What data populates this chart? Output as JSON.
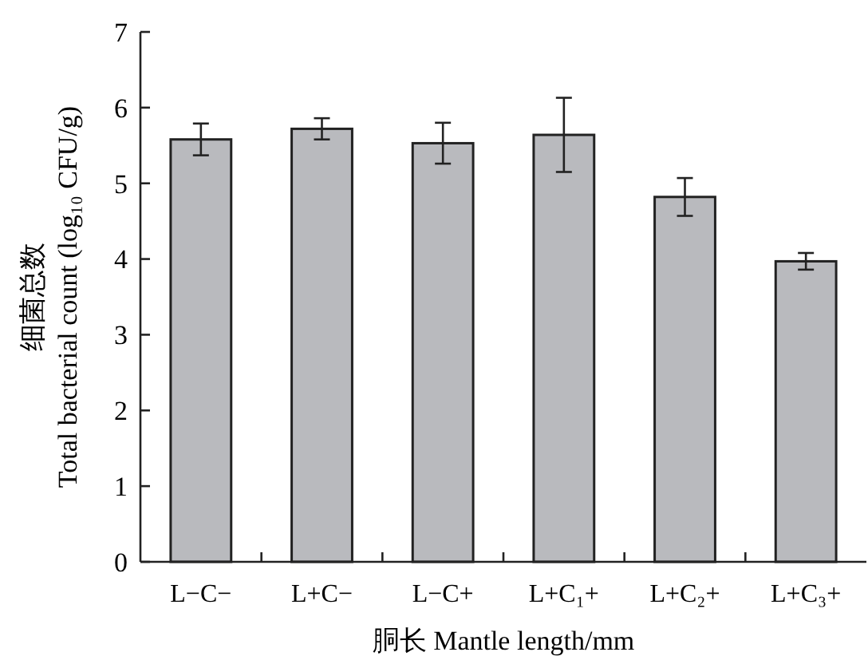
{
  "chart_data": {
    "type": "bar",
    "xlabel": "胴长 Mantle length/mm",
    "ylabel": "细菌总数\nTotal bacterial count (log₁₀ CFU/g)",
    "categories": [
      "L−C−",
      "L+C−",
      "L−C+",
      "L+C₁+",
      "L+C₂+",
      "L+C₃+"
    ],
    "values": [
      5.58,
      5.72,
      5.53,
      5.64,
      4.82,
      3.97
    ],
    "errors": [
      0.21,
      0.14,
      0.27,
      0.49,
      0.25,
      0.11
    ],
    "color": "#b9babe",
    "ylim": [
      0,
      7
    ],
    "yticks": [
      0,
      1,
      2,
      3,
      4,
      5,
      6,
      7
    ],
    "grid": false
  }
}
